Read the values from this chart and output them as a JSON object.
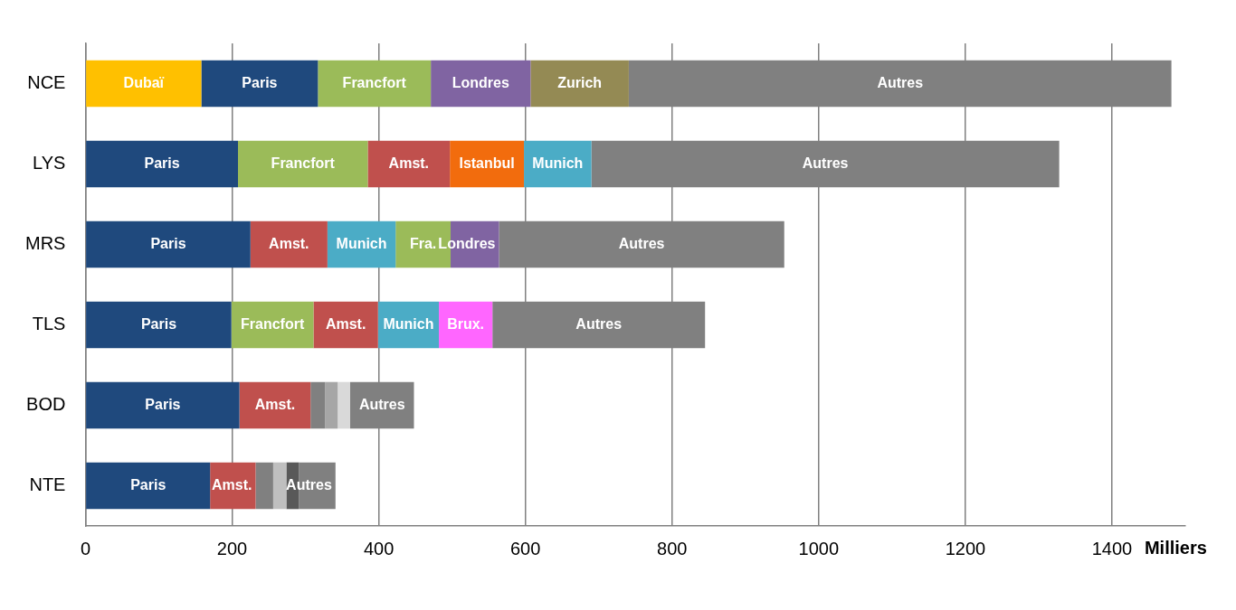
{
  "chart_data": {
    "type": "bar",
    "orientation": "horizontal",
    "stacked": true,
    "categories": [
      "NCE",
      "LYS",
      "MRS",
      "TLS",
      "BOD",
      "NTE"
    ],
    "xlim": [
      0,
      1500
    ],
    "xticks": [
      0,
      200,
      400,
      600,
      800,
      1000,
      1200,
      1400
    ],
    "xlabel": "Milliers",
    "grid": "x",
    "series": [
      {
        "values": [
          158,
          208,
          225,
          199,
          210,
          170
        ],
        "colors": [
          "#ffc000",
          "#1f497d",
          "#1f497d",
          "#1f497d",
          "#1f497d",
          "#1f497d"
        ],
        "value_labels": [
          "Dubaï",
          "Paris",
          "Paris",
          "Paris",
          "Paris",
          "Paris"
        ]
      },
      {
        "values": [
          159,
          177,
          105,
          112,
          97,
          62
        ],
        "colors": [
          "#1f497d",
          "#9bbb59",
          "#c0504d",
          "#9bbb59",
          "#c0504d",
          "#c0504d"
        ],
        "value_labels": [
          "Paris",
          "Francfort",
          "Amst.",
          "Francfort",
          "Amst.",
          "Amst."
        ]
      },
      {
        "values": [
          154,
          112,
          93,
          88,
          20,
          24
        ],
        "colors": [
          "#9bbb59",
          "#c0504d",
          "#4bacc6",
          "#c0504d",
          "#808080",
          "#808080"
        ],
        "value_labels": [
          "Francfort",
          "Amst.",
          "Munich",
          "Amst.",
          null,
          null
        ]
      },
      {
        "values": [
          136,
          101,
          75,
          83,
          17,
          18
        ],
        "colors": [
          "#8064a2",
          "#f26c0d",
          "#9bbb59",
          "#4bacc6",
          "#a6a6a6",
          "#bfbfbf"
        ],
        "value_labels": [
          "Londres",
          "Istanbul",
          "Fra.",
          "Munich",
          null,
          null
        ]
      },
      {
        "values": [
          134,
          92,
          66,
          73,
          17,
          17
        ],
        "colors": [
          "#948a54",
          "#4bacc6",
          "#8064a2",
          "#ff66ff",
          "#d9d9d9",
          "#595959"
        ],
        "value_labels": [
          "Zurich",
          "Munich",
          "Londres",
          "Brux.",
          null,
          null
        ]
      },
      {
        "values": [
          740,
          638,
          389,
          290,
          87,
          50
        ],
        "colors": [
          "#808080",
          "#808080",
          "#808080",
          "#808080",
          "#808080",
          "#808080"
        ],
        "value_labels": [
          "Autres",
          "Autres",
          "Autres",
          "Autres",
          "Autres",
          "Autres"
        ]
      }
    ]
  }
}
